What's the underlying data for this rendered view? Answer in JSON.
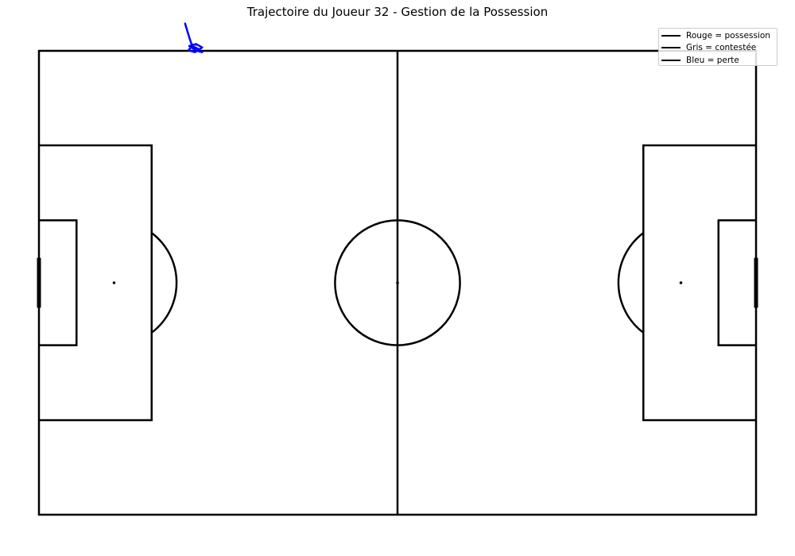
{
  "chart_data": {
    "type": "line",
    "title": "Trajectoire du Joueur 32 - Gestion de la Possession",
    "xlabel": "",
    "ylabel": "",
    "pitch": {
      "length": 105,
      "width": 68
    },
    "xlim": [
      -5,
      111
    ],
    "ylim": [
      -5,
      73
    ],
    "grid": false,
    "legend": {
      "placement": "top-right",
      "entries": [
        {
          "label": "Rouge = possession",
          "color": "#000000"
        },
        {
          "label": "Gris = contestée",
          "color": "#000000"
        },
        {
          "label": "Bleu = perte",
          "color": "#000000"
        }
      ]
    },
    "series": [
      {
        "status": "perte",
        "color": "#0000ff",
        "x": [
          21.4,
          21.7,
          22.0,
          22.3,
          22.6,
          23.1,
          23.5,
          23.9,
          23.0,
          22.0,
          22.8,
          23.5,
          23.9,
          23.2,
          22.8,
          21.9,
          22.6,
          23.0
        ],
        "y": [
          72.0,
          71.0,
          70.0,
          69.1,
          68.6,
          68.4,
          68.2,
          68.5,
          69.0,
          68.7,
          68.2,
          67.9,
          67.8,
          68.0,
          67.8,
          68.1,
          68.9,
          68.9
        ]
      }
    ]
  }
}
